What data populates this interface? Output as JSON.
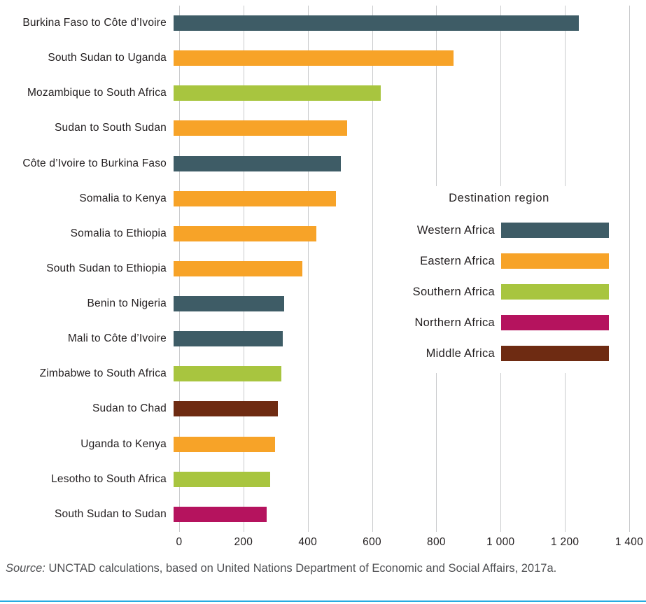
{
  "chart_data": {
    "type": "bar",
    "orientation": "horizontal",
    "title": "",
    "xlabel": "",
    "ylabel": "",
    "xlim": [
      0,
      1400
    ],
    "grid": "vertical",
    "x_tick_values": [
      0,
      200,
      400,
      600,
      800,
      1000,
      1200,
      1400
    ],
    "x_tick_labels": [
      "0",
      "200",
      "400",
      "600",
      "800",
      "1 000",
      "1 200",
      "1 400"
    ],
    "bars": [
      {
        "label": "Burkina Faso to Côte d’Ivoire",
        "value": 1260,
        "region": "Western Africa"
      },
      {
        "label": "South Sudan to Uganda",
        "value": 870,
        "region": "Eastern Africa"
      },
      {
        "label": "Mozambique to South Africa",
        "value": 645,
        "region": "Southern Africa"
      },
      {
        "label": "Sudan to South Sudan",
        "value": 540,
        "region": "Eastern Africa"
      },
      {
        "label": "Côte d’Ivoire to Burkina Faso",
        "value": 520,
        "region": "Western Africa"
      },
      {
        "label": "Somalia to Kenya",
        "value": 505,
        "region": "Eastern Africa"
      },
      {
        "label": "Somalia to Ethiopia",
        "value": 445,
        "region": "Eastern Africa"
      },
      {
        "label": "South Sudan to Ethiopia",
        "value": 400,
        "region": "Eastern Africa"
      },
      {
        "label": "Benin to Nigeria",
        "value": 345,
        "region": "Western Africa"
      },
      {
        "label": "Mali to Côte d’Ivoire",
        "value": 340,
        "region": "Western Africa"
      },
      {
        "label": "Zimbabwe to South Africa",
        "value": 335,
        "region": "Southern Africa"
      },
      {
        "label": "Sudan to Chad",
        "value": 325,
        "region": "Middle Africa"
      },
      {
        "label": "Uganda to Kenya",
        "value": 315,
        "region": "Eastern Africa"
      },
      {
        "label": "Lesotho to South Africa",
        "value": 300,
        "region": "Southern Africa"
      },
      {
        "label": "South Sudan to Sudan",
        "value": 290,
        "region": "Northern Africa"
      }
    ],
    "region_colors": {
      "Western Africa": "#3e5c66",
      "Eastern Africa": "#f7a328",
      "Southern Africa": "#a8c53f",
      "Northern Africa": "#b5135e",
      "Middle Africa": "#6e2b12"
    },
    "legend": {
      "title": "Destination region",
      "position": "inside-right",
      "entries": [
        {
          "label": "Western Africa",
          "color": "#3e5c66"
        },
        {
          "label": "Eastern Africa",
          "color": "#f7a328"
        },
        {
          "label": "Southern Africa",
          "color": "#a8c53f"
        },
        {
          "label": "Northern Africa",
          "color": "#b5135e"
        },
        {
          "label": "Middle Africa",
          "color": "#6e2b12"
        }
      ]
    }
  },
  "source_note": {
    "prefix": "Source:",
    "text": " UNCTAD calculations, based on United Nations Department of Economic and Social Affairs, 2017a."
  },
  "colors": {
    "gridline": "#c9cacc",
    "axis_text": "#231f20",
    "divider": "#27aae1"
  }
}
